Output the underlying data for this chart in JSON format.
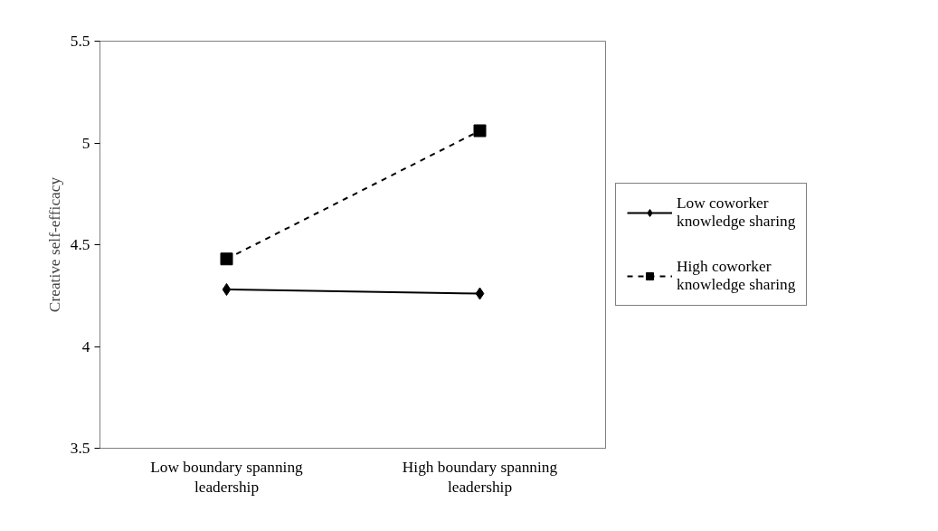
{
  "chart_data": {
    "type": "line",
    "ylabel": "Creative self-efficacy",
    "categories": [
      "Low boundary spanning leadership",
      "High boundary spanning leadership"
    ],
    "series": [
      {
        "name": "Low coworker knowledge sharing",
        "color": "#000000",
        "values": [
          4.28,
          4.26
        ],
        "marker": "diamond",
        "line_style": "solid"
      },
      {
        "name": "High coworker knowledge sharing",
        "color": "#000000",
        "values": [
          4.43,
          5.06
        ],
        "marker": "square",
        "line_style": "dashed"
      }
    ],
    "ylim": [
      3.5,
      5.5
    ],
    "yticks": [
      3.5,
      4,
      4.5,
      5,
      5.5
    ],
    "grid": false,
    "legend": "right"
  }
}
